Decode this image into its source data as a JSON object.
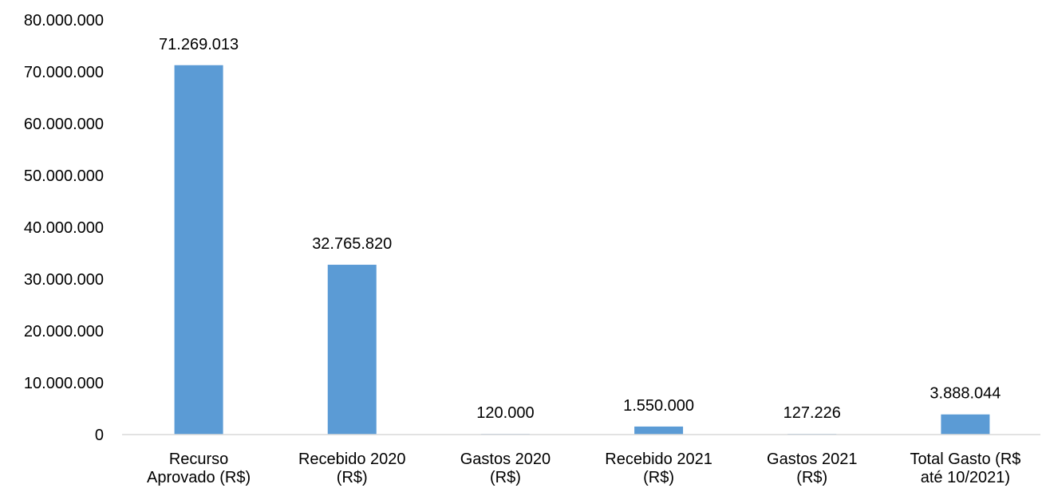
{
  "chart_data": {
    "type": "bar",
    "title": "",
    "xlabel": "",
    "ylabel": "",
    "ylim": [
      0,
      80000000
    ],
    "yticks": [
      0,
      10000000,
      20000000,
      30000000,
      40000000,
      50000000,
      60000000,
      70000000,
      80000000
    ],
    "ytick_labels": [
      "0",
      "10.000.000",
      "20.000.000",
      "30.000.000",
      "40.000.000",
      "50.000.000",
      "60.000.000",
      "70.000.000",
      "80.000.000"
    ],
    "grid": false,
    "legend": "none",
    "bar_color": "#5B9BD5",
    "categories": [
      [
        "Recurso",
        "Aprovado (R$)"
      ],
      [
        "Recebido 2020",
        "(R$)"
      ],
      [
        "Gastos 2020",
        "(R$)"
      ],
      [
        "Recebido 2021",
        "(R$)"
      ],
      [
        "Gastos 2021",
        "(R$)"
      ],
      [
        "Total Gasto (R$",
        "até 10/2021)"
      ]
    ],
    "values": [
      71269013,
      32765820,
      120000,
      1550000,
      127226,
      3888044
    ],
    "data_labels": [
      "71.269.013",
      "32.765.820",
      "120.000",
      "1.550.000",
      "127.226",
      "3.888.044"
    ]
  }
}
